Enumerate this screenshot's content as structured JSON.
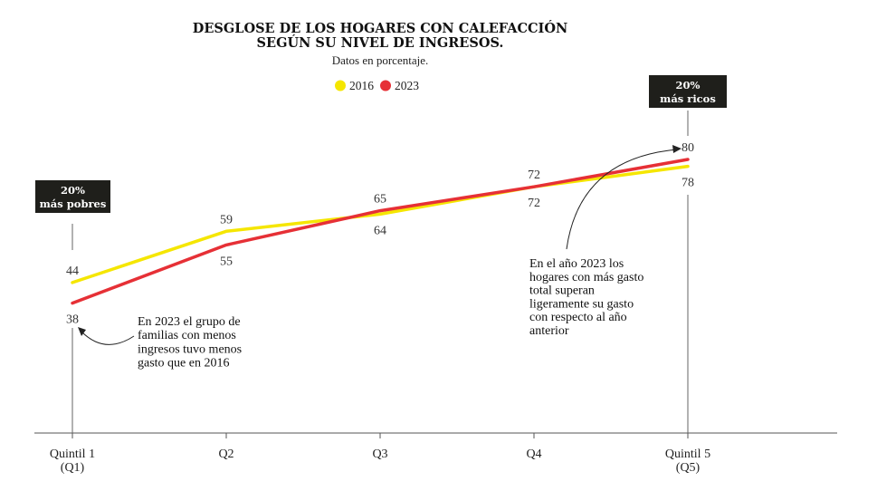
{
  "chart_data": {
    "type": "line",
    "title_lines": [
      "DESGLOSE DE LOS HOGARES CON CALEFACCIÓN",
      "SEGÚN SU NIVEL DE INGRESOS."
    ],
    "subtitle": "Datos en porcentaje.",
    "categories": [
      "Quintil 1 (Q1)",
      "Q2",
      "Q3",
      "Q4",
      "Quintil 5 (Q5)"
    ],
    "tick_labels": [
      [
        "Quintil 1",
        "(Q1)"
      ],
      [
        "Q2"
      ],
      [
        "Q3"
      ],
      [
        "Q4"
      ],
      [
        "Quintil 5",
        "(Q5)"
      ]
    ],
    "series": [
      {
        "name": "2016",
        "color": "#f5e600",
        "values": [
          44,
          59,
          64,
          72,
          78
        ]
      },
      {
        "name": "2023",
        "color": "#e63036",
        "values": [
          38,
          55,
          65,
          72,
          80
        ]
      }
    ],
    "ylim": [
      0,
      100
    ],
    "legend": "top-center",
    "grid": false,
    "badges": [
      {
        "lines": [
          "20%",
          "más pobres"
        ]
      },
      {
        "lines": [
          "20%",
          "más ricos"
        ]
      }
    ],
    "annotations": [
      {
        "lines": [
          "En 2023 el grupo de",
          "familias con menos",
          "ingresos tuvo menos",
          "gasto que en 2016"
        ]
      },
      {
        "lines": [
          "En el año 2023 los",
          "hogares con más gasto",
          "total superan",
          "ligeramente su gasto",
          "con respecto al año",
          "anterior"
        ]
      }
    ]
  }
}
